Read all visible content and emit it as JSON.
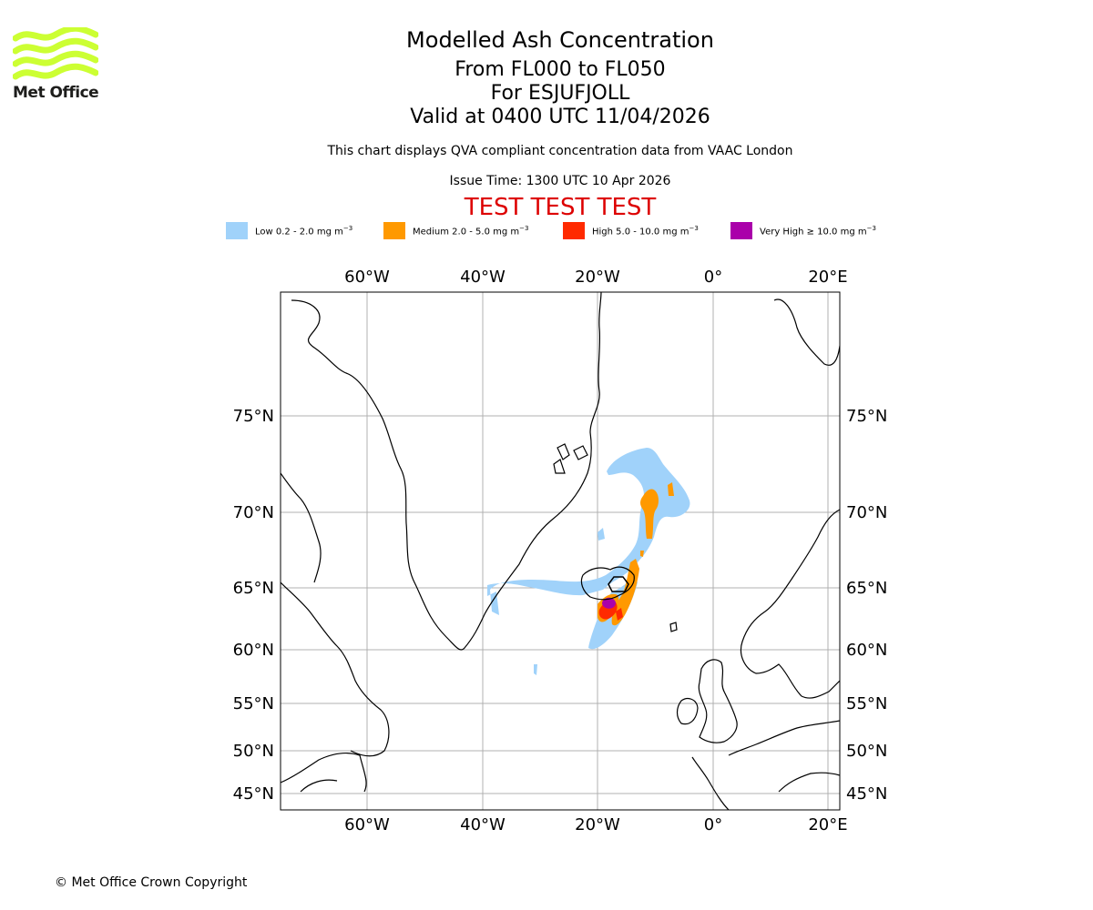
{
  "header": {
    "title": "Modelled Ash Concentration",
    "flight_levels": "From FL000 to FL050",
    "volcano": "For ESJUFJOLL",
    "valid_time": "Valid at 0400 UTC 11/04/2026",
    "description": "This chart displays QVA compliant concentration data from VAAC London",
    "issue_time": "Issue Time: 1300 UTC 10 Apr 2026",
    "test_banner": "TEST TEST TEST"
  },
  "logo": {
    "text": "Met Office",
    "color": "#ccff33"
  },
  "legend": [
    {
      "label": "Low 0.2 - 2.0 mg m",
      "unit_exp": "−3",
      "color": "#a0d2fa"
    },
    {
      "label": "Medium 2.0 - 5.0 mg m",
      "unit_exp": "−3",
      "color": "#ff9900"
    },
    {
      "label": "High 5.0 - 10.0 mg m",
      "unit_exp": "−3",
      "color": "#ff2a00"
    },
    {
      "label": "Very High  ≥  10.0 mg m",
      "unit_exp": "−3",
      "color": "#aa00aa"
    }
  ],
  "axes": {
    "lon_ticks": [
      "60°W",
      "40°W",
      "20°W",
      "0°",
      "20°E"
    ],
    "lat_ticks": [
      "75°N",
      "70°N",
      "65°N",
      "60°N",
      "55°N",
      "50°N",
      "45°N"
    ],
    "title_color": "#000000",
    "test_color": "#dd0000"
  },
  "footer": {
    "copyright": "© Met Office Crown Copyright"
  }
}
